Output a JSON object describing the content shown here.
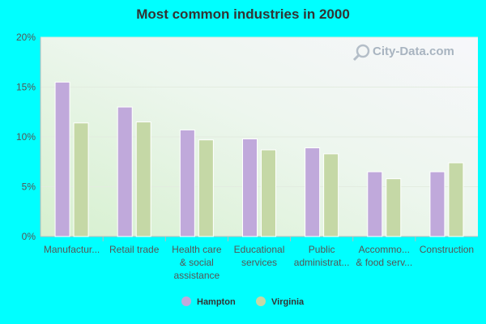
{
  "chart_data": {
    "type": "bar",
    "title": "Most common industries in 2000",
    "categories": [
      [
        "Manufactur..."
      ],
      [
        "Retail trade"
      ],
      [
        "Health care",
        "& social",
        "assistance"
      ],
      [
        "Educational",
        "services"
      ],
      [
        "Public",
        "administrat..."
      ],
      [
        "Accommo...",
        "& food serv..."
      ],
      [
        "Construction"
      ]
    ],
    "series": [
      {
        "name": "Hampton",
        "values": [
          15.5,
          13.0,
          10.7,
          9.8,
          8.9,
          6.5,
          6.5
        ]
      },
      {
        "name": "Virginia",
        "values": [
          11.4,
          11.5,
          9.7,
          8.7,
          8.3,
          5.8,
          7.4
        ]
      }
    ],
    "ylim": [
      0,
      20
    ],
    "yticks": [
      0,
      5,
      10,
      15,
      20
    ],
    "ytick_labels": [
      "0%",
      "5%",
      "10%",
      "15%",
      "20%"
    ],
    "xlabel": "",
    "ylabel": "",
    "legend_position": "bottom"
  },
  "colors": {
    "hampton": "#C0A9DB",
    "virginia": "#C5D8A6",
    "grid": "#E3ECE0",
    "axis": "#BBBBBB"
  },
  "watermark": "City-Data.com"
}
